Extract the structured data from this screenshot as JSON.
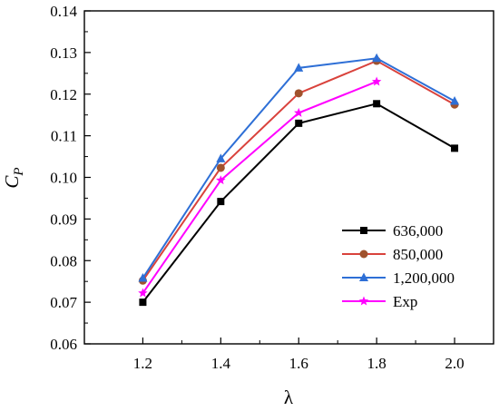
{
  "chart_data": {
    "type": "line",
    "x": [
      1.2,
      1.4,
      1.6,
      1.8,
      2.0
    ],
    "x_tick_labels": [
      "1.2",
      "1.4",
      "1.6",
      "1.8",
      "2.0"
    ],
    "y_tick_values": [
      0.06,
      0.07,
      0.08,
      0.09,
      0.1,
      0.11,
      0.12,
      0.13,
      0.14
    ],
    "y_tick_labels": [
      "0.06",
      "0.07",
      "0.08",
      "0.09",
      "0.10",
      "0.11",
      "0.12",
      "0.13",
      "0.14"
    ],
    "xlim": [
      1.05,
      2.1
    ],
    "ylim": [
      0.06,
      0.14
    ],
    "xlabel": "λ",
    "ylabel_main": "C",
    "ylabel_sub": "P",
    "grid": false,
    "legend_position": "bottom-right",
    "series": [
      {
        "name": "636,000",
        "color": "#000000",
        "marker": "square",
        "values": [
          0.07,
          0.0942,
          0.113,
          0.1177,
          0.107
        ]
      },
      {
        "name": "850,000",
        "color": "#d9423c",
        "marker_color": "#a0522d",
        "marker": "circle",
        "values": [
          0.0752,
          0.1023,
          0.1202,
          0.128,
          0.1175
        ]
      },
      {
        "name": "1,200,000",
        "color": "#2e6fd6",
        "marker": "triangle",
        "values": [
          0.0758,
          0.1045,
          0.1263,
          0.1286,
          0.1183
        ]
      },
      {
        "name": "Exp",
        "color": "#ff00ff",
        "marker": "star",
        "values": [
          0.0722,
          0.0993,
          0.1155,
          0.123,
          null
        ]
      }
    ]
  }
}
